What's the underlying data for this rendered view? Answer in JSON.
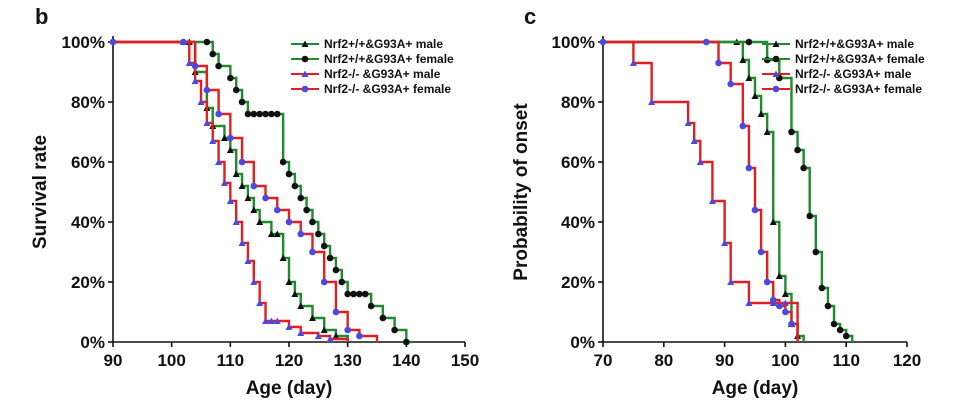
{
  "chart_data": [
    {
      "type": "line",
      "step": true,
      "panel": "b",
      "xlabel": "Age (day)",
      "ylabel": "Survival rate",
      "xlim": [
        90,
        150
      ],
      "ylim": [
        0,
        100
      ],
      "xticks": [
        90,
        100,
        110,
        120,
        130,
        140,
        150
      ],
      "yticks": [
        0,
        20,
        40,
        60,
        80,
        100
      ],
      "ytick_labels": [
        "0%",
        "20%",
        "40%",
        "60%",
        "80%",
        "100%"
      ],
      "legend": "top-right",
      "series": [
        {
          "name": "Nrf2+/+&G93A+ male",
          "color": "#1f8a2e",
          "marker": "triangle",
          "x": [
            90,
            103,
            104,
            106,
            107,
            109,
            110,
            111,
            112,
            113,
            114,
            115,
            117,
            118,
            119,
            120,
            121,
            122,
            124,
            126,
            128,
            130
          ],
          "y": [
            100,
            100,
            90,
            78,
            72,
            68,
            64,
            56,
            52,
            48,
            44,
            40,
            36,
            36,
            28,
            20,
            16,
            12,
            8,
            4,
            2,
            0
          ]
        },
        {
          "name": "Nrf2+/+&G93A+ female",
          "color": "#1f8a2e",
          "marker": "circle",
          "x": [
            90,
            106,
            107,
            108,
            110,
            111,
            112,
            113,
            114,
            115,
            116,
            117,
            118,
            119,
            120,
            121,
            122,
            123,
            124,
            125,
            126,
            127,
            128,
            129,
            130,
            131,
            132,
            133,
            134,
            136,
            138,
            140,
            141
          ],
          "y": [
            100,
            100,
            96,
            92,
            88,
            84,
            80,
            76,
            76,
            76,
            76,
            76,
            76,
            60,
            56,
            52,
            48,
            44,
            40,
            36,
            32,
            28,
            24,
            20,
            16,
            16,
            16,
            16,
            12,
            8,
            4,
            0,
            0
          ]
        },
        {
          "name": "Nrf2-/- &G93A+ male",
          "color": "#e02020",
          "marker": "triangle",
          "x": [
            90,
            102,
            103,
            104,
            105,
            106,
            107,
            108,
            109,
            110,
            111,
            112,
            113,
            114,
            115,
            116,
            117,
            118,
            120,
            122,
            125,
            127,
            130
          ],
          "y": [
            100,
            100,
            93,
            87,
            80,
            73,
            67,
            60,
            53,
            47,
            40,
            33,
            27,
            20,
            13,
            7,
            7,
            7,
            5,
            3,
            2,
            1,
            0
          ]
        },
        {
          "name": "Nrf2-/- &G93A+ female",
          "color": "#e02020",
          "marker": "circle",
          "x": [
            90,
            102,
            104,
            106,
            108,
            110,
            112,
            114,
            116,
            118,
            120,
            122,
            124,
            126,
            128,
            130,
            132,
            135
          ],
          "y": [
            100,
            100,
            92,
            84,
            76,
            68,
            60,
            52,
            48,
            44,
            40,
            36,
            30,
            20,
            10,
            4,
            2,
            0
          ]
        }
      ]
    },
    {
      "type": "line",
      "step": true,
      "panel": "c",
      "xlabel": "Age (day)",
      "ylabel": "Probability of onset",
      "xlim": [
        70,
        120
      ],
      "ylim": [
        0,
        100
      ],
      "xticks": [
        70,
        80,
        90,
        100,
        110,
        120
      ],
      "yticks": [
        0,
        20,
        40,
        60,
        80,
        100
      ],
      "ytick_labels": [
        "0%",
        "20%",
        "40%",
        "60%",
        "80%",
        "100%"
      ],
      "legend": "top-right",
      "series": [
        {
          "name": "Nrf2+/+&G93A+ male",
          "color": "#1f8a2e",
          "marker": "triangle",
          "x": [
            70,
            92,
            93,
            94,
            95,
            96,
            97,
            98,
            99,
            100,
            101,
            102,
            103
          ],
          "y": [
            100,
            100,
            94,
            88,
            82,
            76,
            70,
            40,
            22,
            16,
            6,
            2,
            0
          ]
        },
        {
          "name": "Nrf2+/+&G93A+ female",
          "color": "#1f8a2e",
          "marker": "circle",
          "x": [
            70,
            94,
            97,
            99,
            101,
            102,
            103,
            104,
            105,
            106,
            107,
            108,
            109,
            110,
            111
          ],
          "y": [
            100,
            100,
            94,
            88,
            70,
            64,
            58,
            42,
            30,
            18,
            12,
            6,
            4,
            2,
            0
          ]
        },
        {
          "name": "Nrf2-/- &G93A+ male",
          "color": "#e02020",
          "marker": "triangle",
          "x": [
            70,
            75,
            78,
            84,
            85,
            86,
            88,
            90,
            91,
            94,
            98,
            100,
            102
          ],
          "y": [
            100,
            93,
            80,
            73,
            67,
            60,
            47,
            33,
            20,
            13,
            13,
            13,
            0
          ]
        },
        {
          "name": "Nrf2-/- &G93A+ female",
          "color": "#e02020",
          "marker": "circle",
          "x": [
            70,
            87,
            89,
            91,
            93,
            94,
            95,
            96,
            97,
            98,
            99,
            100,
            101,
            102
          ],
          "y": [
            100,
            100,
            93,
            86,
            72,
            58,
            44,
            30,
            20,
            14,
            12,
            10,
            6,
            0
          ]
        }
      ]
    }
  ]
}
